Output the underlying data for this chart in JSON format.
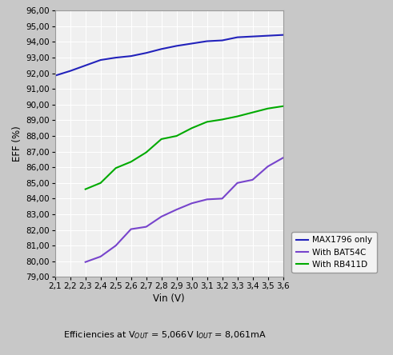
{
  "title": "",
  "xlabel": "Vin (V)",
  "ylabel": "EFF (%)",
  "xlim": [
    2.1,
    3.6
  ],
  "ylim": [
    79.0,
    96.0
  ],
  "xticks": [
    2.1,
    2.2,
    2.3,
    2.4,
    2.5,
    2.6,
    2.7,
    2.8,
    2.9,
    3.0,
    3.1,
    3.2,
    3.3,
    3.4,
    3.5,
    3.6
  ],
  "yticks": [
    79.0,
    80.0,
    81.0,
    82.0,
    83.0,
    84.0,
    85.0,
    86.0,
    87.0,
    88.0,
    89.0,
    90.0,
    91.0,
    92.0,
    93.0,
    94.0,
    95.0,
    96.0
  ],
  "caption": "Efficiencies at V$_{OUT}$ = 5,066V I$_{OUT}$ = 8,061mA",
  "curves": [
    {
      "label": "MAX1796 only",
      "color": "#2222bb",
      "x": [
        2.1,
        2.2,
        2.3,
        2.4,
        2.5,
        2.6,
        2.7,
        2.8,
        2.9,
        3.0,
        3.1,
        3.2,
        3.3,
        3.4,
        3.5,
        3.6
      ],
      "y": [
        91.85,
        92.15,
        92.5,
        92.85,
        93.0,
        93.1,
        93.3,
        93.55,
        93.75,
        93.9,
        94.05,
        94.1,
        94.3,
        94.35,
        94.4,
        94.45
      ]
    },
    {
      "label": "With BAT54C",
      "color": "#7744cc",
      "x": [
        2.3,
        2.4,
        2.5,
        2.6,
        2.7,
        2.8,
        2.9,
        3.0,
        3.1,
        3.2,
        3.3,
        3.4,
        3.5,
        3.6
      ],
      "y": [
        79.95,
        80.3,
        81.0,
        82.05,
        82.2,
        82.85,
        83.3,
        83.7,
        83.95,
        84.0,
        85.0,
        85.2,
        86.05,
        86.6
      ]
    },
    {
      "label": "With RB411D",
      "color": "#00aa00",
      "x": [
        2.3,
        2.4,
        2.5,
        2.6,
        2.7,
        2.8,
        2.9,
        3.0,
        3.1,
        3.2,
        3.3,
        3.4,
        3.5,
        3.6
      ],
      "y": [
        84.6,
        85.0,
        85.95,
        86.35,
        86.95,
        87.8,
        88.0,
        88.5,
        88.9,
        89.05,
        89.25,
        89.5,
        89.75,
        89.9
      ]
    }
  ],
  "legend_outside": true,
  "bg_color": "#f0f0f0",
  "fig_bg_color": "#c8c8c8",
  "grid_color": "#ffffff",
  "tick_label_fontsize": 7.5,
  "axis_label_fontsize": 8.5,
  "legend_fontsize": 7.5,
  "caption_fontsize": 8
}
